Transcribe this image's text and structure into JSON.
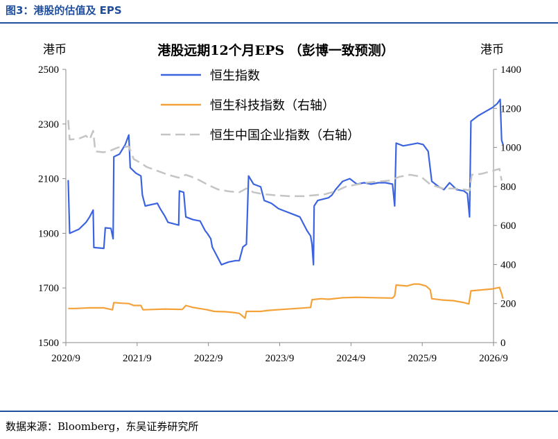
{
  "figure": {
    "label": "图3：港股的估值及 EPS",
    "source": "数据来源：Bloomberg，东吴证券研究所"
  },
  "colors": {
    "accent": "#1f4e9c",
    "hsi": "#3b63e0",
    "hstech": "#f4a137",
    "hscei": "#c4c4c4"
  },
  "chart_data": {
    "type": "line",
    "title": "港股远期12个月EPS （彭博一致预测）",
    "left_unit": "港币",
    "right_unit": "港币",
    "x_ticks": [
      "2020/9",
      "2021/9",
      "2022/9",
      "2023/9",
      "2024/9",
      "2025/9",
      "2026/9"
    ],
    "xlim": [
      "2020/9",
      "2026/9"
    ],
    "ylim_left": [
      1500,
      2500
    ],
    "ylim_right": [
      0,
      1400
    ],
    "y_ticks_left": [
      1500,
      1700,
      1900,
      2100,
      2300,
      2500
    ],
    "y_ticks_right": [
      0,
      200,
      400,
      600,
      800,
      1000,
      1200,
      1400
    ],
    "legend": [
      {
        "key": "hsi",
        "label": "恒生指数"
      },
      {
        "key": "hstech",
        "label": "恒生科技指数（右轴）"
      },
      {
        "key": "hscei",
        "label": "恒生中国企业指数（右轴）"
      }
    ],
    "series": [
      {
        "key": "hsi",
        "name": "恒生指数",
        "axis": "left",
        "style": "solid",
        "points": [
          [
            2020.7,
            2095
          ],
          [
            2020.72,
            1900
          ],
          [
            2020.85,
            1915
          ],
          [
            2020.95,
            1940
          ],
          [
            2021.0,
            1960
          ],
          [
            2021.05,
            1985
          ],
          [
            2021.06,
            1848
          ],
          [
            2021.2,
            1845
          ],
          [
            2021.22,
            1920
          ],
          [
            2021.3,
            1918
          ],
          [
            2021.33,
            1880
          ],
          [
            2021.34,
            2180
          ],
          [
            2021.42,
            2190
          ],
          [
            2021.5,
            2225
          ],
          [
            2021.55,
            2260
          ],
          [
            2021.57,
            2140
          ],
          [
            2021.65,
            2120
          ],
          [
            2021.72,
            2110
          ],
          [
            2021.74,
            2040
          ],
          [
            2021.78,
            2000
          ],
          [
            2021.95,
            2010
          ],
          [
            2021.99,
            1990
          ],
          [
            2022.05,
            1965
          ],
          [
            2022.1,
            1940
          ],
          [
            2022.25,
            1930
          ],
          [
            2022.26,
            2055
          ],
          [
            2022.32,
            2050
          ],
          [
            2022.35,
            1960
          ],
          [
            2022.45,
            1950
          ],
          [
            2022.55,
            1945
          ],
          [
            2022.6,
            1920
          ],
          [
            2022.62,
            1910
          ],
          [
            2022.65,
            1900
          ],
          [
            2022.7,
            1880
          ],
          [
            2022.72,
            1850
          ],
          [
            2022.8,
            1810
          ],
          [
            2022.85,
            1785
          ],
          [
            2022.9,
            1790
          ],
          [
            2022.95,
            1795
          ],
          [
            2023.05,
            1800
          ],
          [
            2023.1,
            1800
          ],
          [
            2023.15,
            1850
          ],
          [
            2023.2,
            1860
          ],
          [
            2023.23,
            2110
          ],
          [
            2023.3,
            2080
          ],
          [
            2023.4,
            2070
          ],
          [
            2023.45,
            2020
          ],
          [
            2023.55,
            2010
          ],
          [
            2023.65,
            1990
          ],
          [
            2023.75,
            1980
          ],
          [
            2023.85,
            1970
          ],
          [
            2023.95,
            1960
          ],
          [
            2024.05,
            1910
          ],
          [
            2024.1,
            1890
          ],
          [
            2024.12,
            1860
          ],
          [
            2024.14,
            1785
          ],
          [
            2024.15,
            2000
          ],
          [
            2024.2,
            2020
          ],
          [
            2024.35,
            2030
          ],
          [
            2024.4,
            2040
          ],
          [
            2024.45,
            2060
          ],
          [
            2024.55,
            2090
          ],
          [
            2024.65,
            2100
          ],
          [
            2024.75,
            2080
          ],
          [
            2024.85,
            2085
          ],
          [
            2024.95,
            2080
          ],
          [
            2025.05,
            2085
          ],
          [
            2025.15,
            2085
          ],
          [
            2025.25,
            2080
          ],
          [
            2025.28,
            2000
          ],
          [
            2025.3,
            2230
          ],
          [
            2025.4,
            2220
          ],
          [
            2025.5,
            2225
          ],
          [
            2025.6,
            2230
          ],
          [
            2025.68,
            2225
          ],
          [
            2025.75,
            2200
          ],
          [
            2025.8,
            2090
          ],
          [
            2025.9,
            2070
          ],
          [
            2025.97,
            2060
          ],
          [
            2026.05,
            2085
          ],
          [
            2026.15,
            2060
          ],
          [
            2026.25,
            2055
          ],
          [
            2026.3,
            2045
          ],
          [
            2026.33,
            1960
          ],
          [
            2026.35,
            2310
          ],
          [
            2026.45,
            2330
          ],
          [
            2026.55,
            2345
          ],
          [
            2026.65,
            2360
          ],
          [
            2026.72,
            2375
          ],
          [
            2026.76,
            2390
          ],
          [
            2026.78,
            2240
          ],
          [
            2026.8,
            2225
          ]
        ]
      },
      {
        "key": "hstech",
        "name": "恒生科技指数（右轴）",
        "axis": "right",
        "style": "solid",
        "points": [
          [
            2020.7,
            175
          ],
          [
            2020.8,
            175
          ],
          [
            2021.0,
            178
          ],
          [
            2021.2,
            178
          ],
          [
            2021.32,
            168
          ],
          [
            2021.34,
            205
          ],
          [
            2021.45,
            202
          ],
          [
            2021.55,
            200
          ],
          [
            2021.62,
            190
          ],
          [
            2021.72,
            190
          ],
          [
            2021.75,
            168
          ],
          [
            2021.9,
            170
          ],
          [
            2022.05,
            172
          ],
          [
            2022.3,
            170
          ],
          [
            2022.35,
            190
          ],
          [
            2022.45,
            180
          ],
          [
            2022.65,
            168
          ],
          [
            2022.75,
            160
          ],
          [
            2022.9,
            158
          ],
          [
            2023.0,
            155
          ],
          [
            2023.1,
            150
          ],
          [
            2023.18,
            125
          ],
          [
            2023.2,
            160
          ],
          [
            2023.4,
            160
          ],
          [
            2023.5,
            165
          ],
          [
            2023.7,
            170
          ],
          [
            2023.9,
            175
          ],
          [
            2024.1,
            180
          ],
          [
            2024.12,
            220
          ],
          [
            2024.25,
            225
          ],
          [
            2024.35,
            222
          ],
          [
            2024.55,
            230
          ],
          [
            2024.75,
            232
          ],
          [
            2025.0,
            230
          ],
          [
            2025.25,
            228
          ],
          [
            2025.28,
            240
          ],
          [
            2025.3,
            295
          ],
          [
            2025.45,
            290
          ],
          [
            2025.55,
            300
          ],
          [
            2025.62,
            300
          ],
          [
            2025.72,
            290
          ],
          [
            2025.78,
            270
          ],
          [
            2025.8,
            225
          ],
          [
            2025.95,
            218
          ],
          [
            2026.1,
            215
          ],
          [
            2026.25,
            205
          ],
          [
            2026.32,
            198
          ],
          [
            2026.35,
            265
          ],
          [
            2026.5,
            270
          ],
          [
            2026.65,
            275
          ],
          [
            2026.75,
            283
          ],
          [
            2026.78,
            250
          ],
          [
            2026.8,
            225
          ]
        ]
      },
      {
        "key": "hscei",
        "name": "恒生中国企业指数（右轴）",
        "axis": "right",
        "style": "dashed",
        "points": [
          [
            2020.7,
            1140
          ],
          [
            2020.72,
            1040
          ],
          [
            2020.85,
            1045
          ],
          [
            2020.95,
            1060
          ],
          [
            2021.0,
            1040
          ],
          [
            2021.05,
            1085
          ],
          [
            2021.08,
            980
          ],
          [
            2021.2,
            975
          ],
          [
            2021.3,
            985
          ],
          [
            2021.4,
            1000
          ],
          [
            2021.55,
            1005
          ],
          [
            2021.62,
            940
          ],
          [
            2021.72,
            920
          ],
          [
            2021.8,
            900
          ],
          [
            2021.95,
            880
          ],
          [
            2022.1,
            860
          ],
          [
            2022.25,
            845
          ],
          [
            2022.35,
            860
          ],
          [
            2022.5,
            840
          ],
          [
            2022.65,
            810
          ],
          [
            2022.8,
            785
          ],
          [
            2022.95,
            775
          ],
          [
            2023.1,
            770
          ],
          [
            2023.2,
            790
          ],
          [
            2023.3,
            770
          ],
          [
            2023.45,
            760
          ],
          [
            2023.6,
            755
          ],
          [
            2023.8,
            750
          ],
          [
            2024.0,
            750
          ],
          [
            2024.15,
            755
          ],
          [
            2024.3,
            760
          ],
          [
            2024.45,
            775
          ],
          [
            2024.6,
            800
          ],
          [
            2024.75,
            810
          ],
          [
            2024.9,
            820
          ],
          [
            2025.05,
            825
          ],
          [
            2025.2,
            830
          ],
          [
            2025.35,
            850
          ],
          [
            2025.5,
            860
          ],
          [
            2025.65,
            850
          ],
          [
            2025.78,
            810
          ],
          [
            2025.95,
            790
          ],
          [
            2026.1,
            790
          ],
          [
            2026.25,
            785
          ],
          [
            2026.33,
            780
          ],
          [
            2026.36,
            860
          ],
          [
            2026.5,
            865
          ],
          [
            2026.65,
            880
          ],
          [
            2026.75,
            890
          ],
          [
            2026.78,
            830
          ]
        ]
      }
    ]
  }
}
